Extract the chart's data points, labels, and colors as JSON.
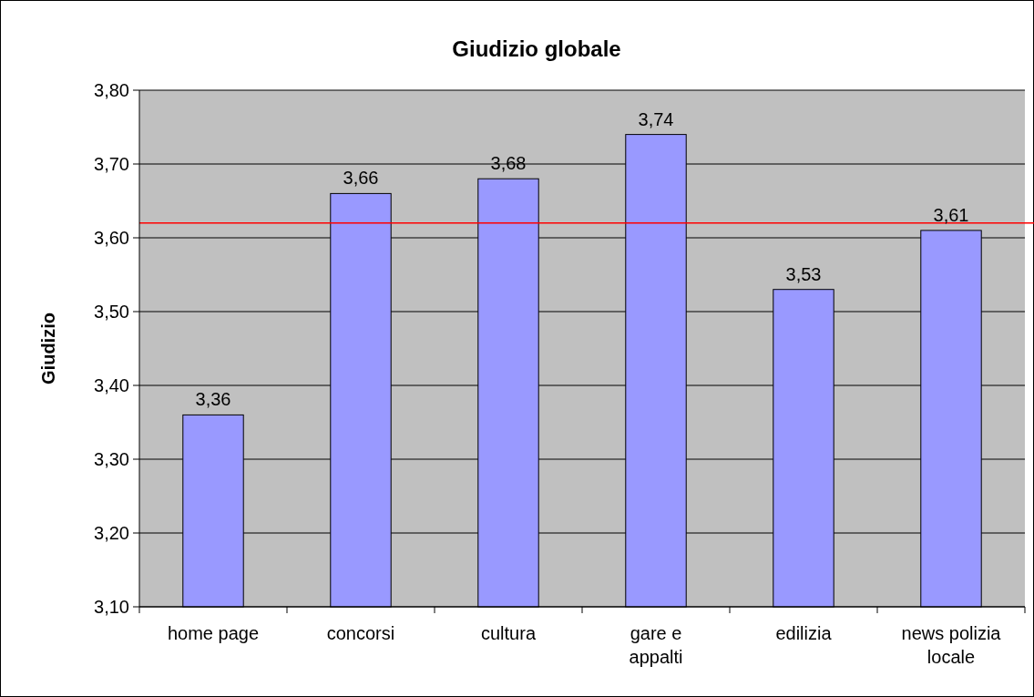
{
  "chart_data": {
    "type": "bar",
    "title": "Giudizio globale",
    "ylabel": "Giudizio",
    "categories": [
      "home page",
      "concorsi",
      "cultura",
      "gare e appalti",
      "edilizia",
      "news polizia locale"
    ],
    "values": [
      3.36,
      3.66,
      3.68,
      3.74,
      3.53,
      3.61
    ],
    "value_labels": [
      "3,36",
      "3,66",
      "3,68",
      "3,74",
      "3,53",
      "3,61"
    ],
    "color": "#9999ff",
    "ylim": [
      3.1,
      3.8
    ],
    "yticks": [
      {
        "value": 3.1,
        "label": "3,10"
      },
      {
        "value": 3.2,
        "label": "3,20"
      },
      {
        "value": 3.3,
        "label": "3,30"
      },
      {
        "value": 3.4,
        "label": "3,40"
      },
      {
        "value": 3.5,
        "label": "3,50"
      },
      {
        "value": 3.6,
        "label": "3,60"
      },
      {
        "value": 3.7,
        "label": "3,70"
      },
      {
        "value": 3.8,
        "label": "3,80"
      }
    ],
    "grid": "y",
    "ref_lines": [
      {
        "axis": "y",
        "value": 3.62,
        "color": "#ff0000"
      }
    ]
  }
}
